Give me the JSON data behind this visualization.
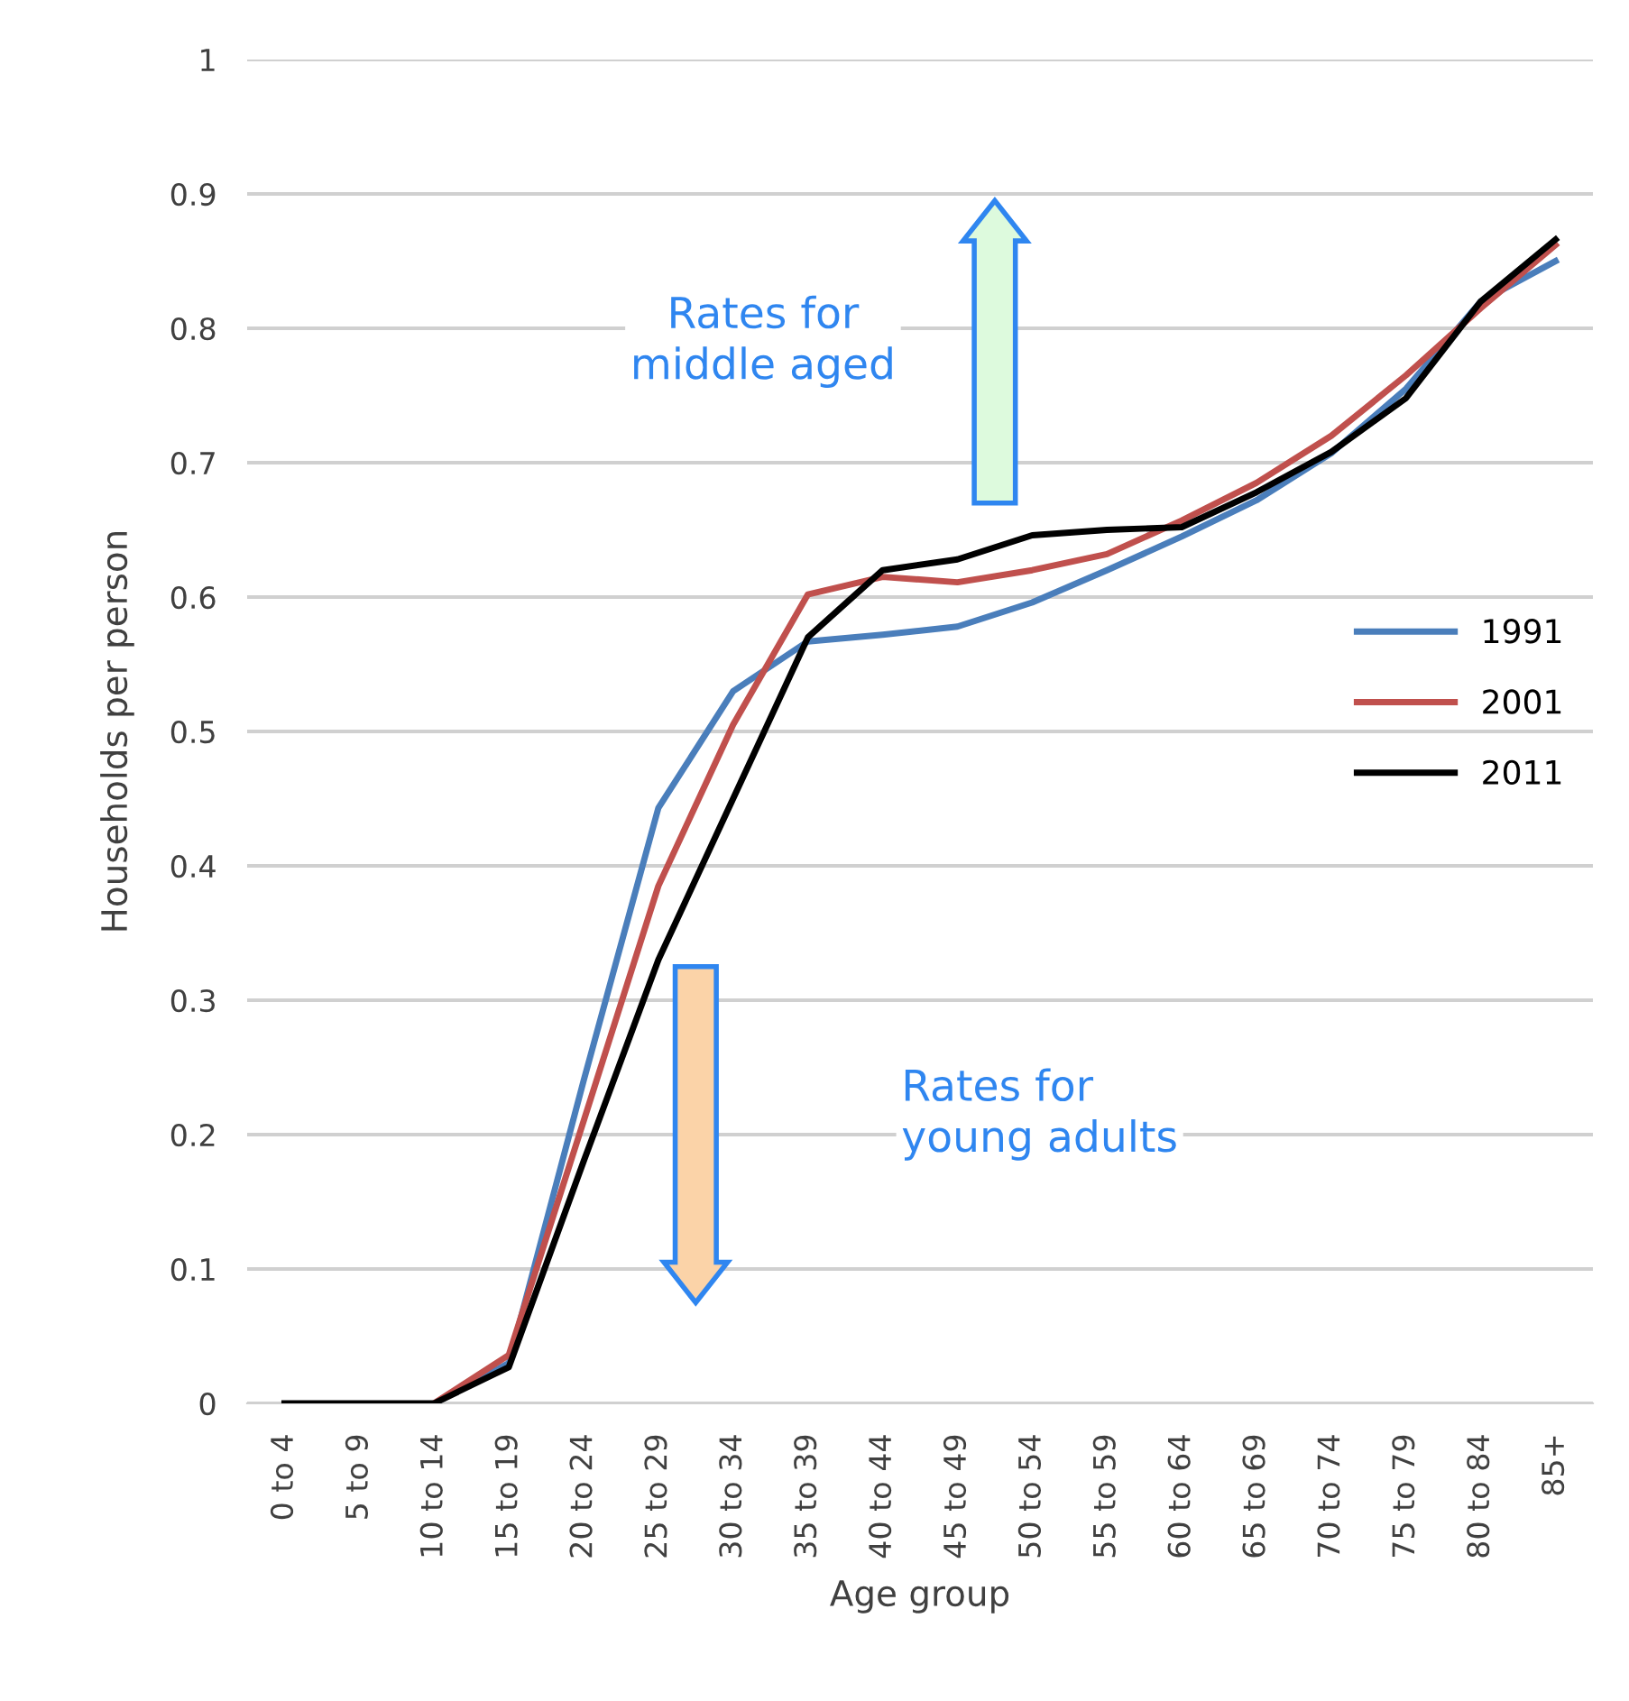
{
  "chart_data": {
    "type": "line",
    "xlabel": "Age group",
    "ylabel": "Households per person",
    "categories": [
      "0 to 4",
      "5 to 9",
      "10 to 14",
      "15 to 19",
      "20 to 24",
      "25 to 29",
      "30 to 34",
      "35 to 39",
      "40 to 44",
      "45 to 49",
      "50 to 54",
      "55 to 59",
      "60 to 64",
      "65 to 69",
      "70 to 74",
      "75 to 79",
      "80 to 84",
      "85+"
    ],
    "series": [
      {
        "name": "1991",
        "color": "#4a7ebb",
        "values": [
          null,
          null,
          0,
          0.03,
          0.24,
          0.443,
          0.53,
          0.567,
          0.572,
          0.578,
          0.596,
          0.62,
          0.645,
          0.672,
          0.707,
          0.755,
          0.82,
          0.85
        ]
      },
      {
        "name": "2001",
        "color": "#c0504d",
        "values": [
          null,
          null,
          0,
          0.036,
          0.21,
          0.385,
          0.505,
          0.602,
          0.615,
          0.611,
          0.62,
          0.632,
          0.657,
          0.685,
          0.72,
          0.765,
          0.815,
          0.862
        ]
      },
      {
        "name": "2011",
        "color": "#000000",
        "values": [
          0,
          0,
          0,
          0.027,
          0.18,
          0.33,
          0.45,
          0.57,
          0.62,
          0.628,
          0.646,
          0.65,
          0.652,
          0.678,
          0.708,
          0.748,
          0.82,
          0.866
        ]
      }
    ],
    "ylim": [
      0,
      1
    ],
    "yticks": [
      0,
      0.1,
      0.2,
      0.3,
      0.4,
      0.5,
      0.6,
      0.7,
      0.8,
      0.9,
      1
    ],
    "grid": "y",
    "legend": "right",
    "marker": "none",
    "line_style": "solid",
    "annotations": [
      "Rates for\nmiddle aged",
      "Rates for\nyoung adults"
    ]
  }
}
